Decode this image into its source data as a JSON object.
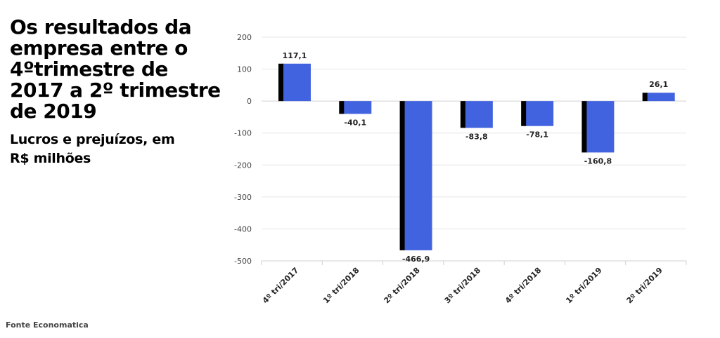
{
  "title": "Os resultados da empresa entre o 4ºtrimestre de 2017 a 2º trimestre de 2019",
  "subtitle": "Lucros e prejuízos, em R$ milhões",
  "source": "Fonte Economatica",
  "colors": {
    "bar": "#4263E0",
    "bar_shadow": "#000000",
    "grid": "#E6E6E6"
  },
  "chart_data": {
    "type": "bar",
    "categories": [
      "4º tri/2017",
      "1º tri/2018",
      "2º tri/2018",
      "3º tri/2018",
      "4º tri/2018",
      "1º tri/2019",
      "2º tri/2019"
    ],
    "values": [
      117.1,
      -40.1,
      -466.9,
      -83.8,
      -78.1,
      -160.8,
      26.1
    ],
    "value_labels": [
      "117,1",
      "-40,1",
      "-466,9",
      "-83,8",
      "-78,1",
      "-160,8",
      "26,1"
    ],
    "ylim": [
      -500,
      200
    ],
    "yticks": [
      200,
      100,
      0,
      -100,
      -200,
      -300,
      -400,
      -500
    ],
    "ytick_labels": [
      "200",
      "100",
      "0",
      "-100",
      "-200",
      "-300",
      "-400",
      "-500"
    ],
    "grid": true,
    "legend": "none"
  }
}
